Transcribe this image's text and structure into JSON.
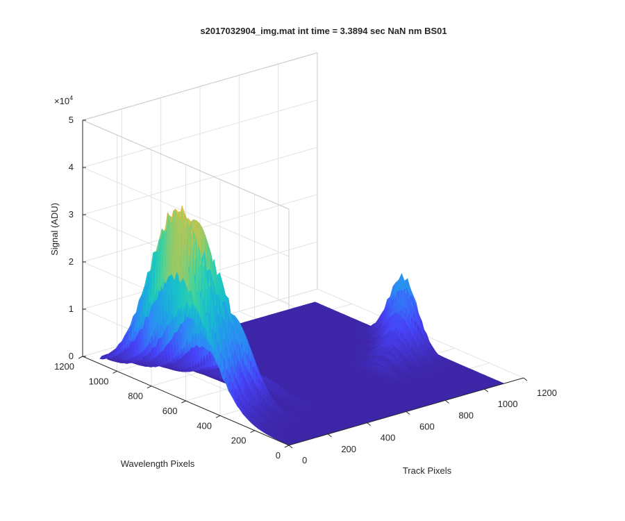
{
  "figure": {
    "title": "s2017032904_img.mat int time = 3.3894 sec  NaN nm BS01"
  },
  "chart_data": {
    "type": "surface",
    "title": "s2017032904_img.mat int time = 3.3894 sec  NaN nm BS01",
    "xlabel": "Track Pixels",
    "ylabel": "Wavelength Pixels",
    "zlabel": "Signal (ADU)",
    "z_exponent_label": "×10^4",
    "z_exponent_text": "×10",
    "z_exponent_power": "4",
    "xlim": [
      0,
      1200
    ],
    "ylim": [
      0,
      1200
    ],
    "zlim": [
      0,
      50000
    ],
    "x_ticks": [
      0,
      200,
      400,
      600,
      800,
      1000,
      1200
    ],
    "y_ticks": [
      0,
      200,
      400,
      600,
      800,
      1000,
      1200
    ],
    "z_ticks": [
      0,
      10000,
      20000,
      30000,
      40000,
      50000
    ],
    "x_tick_labels": [
      "0",
      "200",
      "400",
      "600",
      "800",
      "1000",
      "1200"
    ],
    "y_tick_labels": [
      "0",
      "200",
      "400",
      "600",
      "800",
      "1000",
      "1200"
    ],
    "z_tick_labels": [
      "0",
      "1",
      "2",
      "3",
      "4",
      "5"
    ],
    "grid": true,
    "colormap": [
      "#3e26a8",
      "#4743f8",
      "#2e87f7",
      "#1caadf",
      "#1ac7c2",
      "#45d399",
      "#b8c653",
      "#fdbc3c",
      "#f9fb15"
    ],
    "surface_extent": {
      "x": [
        0,
        1100
      ],
      "y": [
        0,
        1100
      ]
    },
    "peak_ridges": [
      {
        "x": 15,
        "y_center": 650,
        "y_sigma": 250,
        "peak": 41000
      },
      {
        "x": 70,
        "y_center": 620,
        "y_sigma": 210,
        "peak": 37000
      },
      {
        "x": 130,
        "y_center": 600,
        "y_sigma": 190,
        "peak": 27500
      },
      {
        "x": 195,
        "y_center": 560,
        "y_sigma": 170,
        "peak": 17500
      },
      {
        "x": 330,
        "y_center": 520,
        "y_sigma": 150,
        "peak": 2500
      },
      {
        "x": 1060,
        "y_center": 540,
        "y_sigma": 120,
        "peak": 14500
      },
      {
        "x": 1010,
        "y_center": 500,
        "y_sigma": 110,
        "peak": 10000
      },
      {
        "x": 950,
        "y_center": 460,
        "y_sigma": 100,
        "peak": 7000
      },
      {
        "x": 880,
        "y_center": 420,
        "y_sigma": 95,
        "peak": 4500
      },
      {
        "x": 800,
        "y_center": 380,
        "y_sigma": 90,
        "peak": 2500
      }
    ]
  }
}
